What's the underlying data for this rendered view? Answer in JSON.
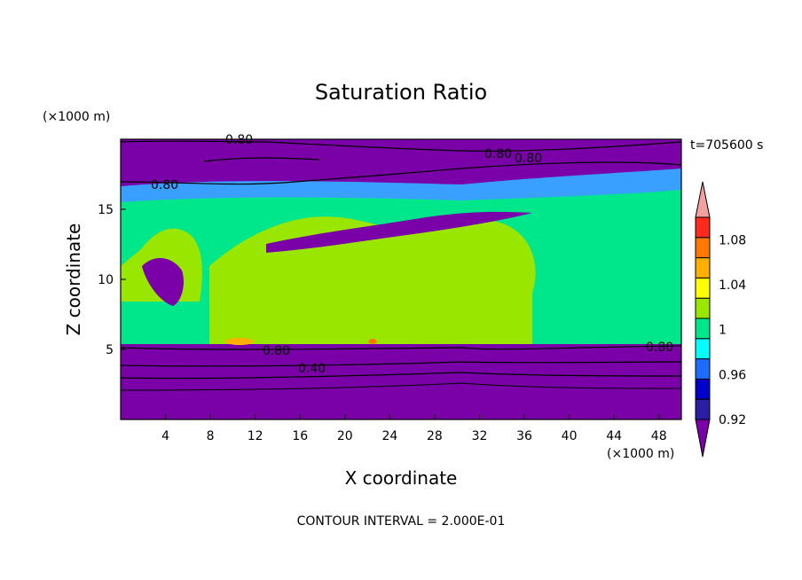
{
  "chart_data": {
    "type": "heatmap",
    "title": "Saturation Ratio",
    "xlabel": "X coordinate",
    "ylabel": "Z coordinate",
    "x_unit": "(×1000 m)",
    "y_unit": "(×1000 m)",
    "time_label": "t=705600 s",
    "footer": "CONTOUR INTERVAL = 2.000E-01",
    "xlim": [
      0,
      50
    ],
    "ylim": [
      0,
      20
    ],
    "x_ticks": [
      "4",
      "8",
      "12",
      "16",
      "20",
      "24",
      "28",
      "32",
      "36",
      "40",
      "44",
      "48"
    ],
    "y_ticks": [
      "5",
      "10",
      "15"
    ],
    "colorbar": {
      "labels": [
        "1.08",
        "1.04",
        "1",
        "0.96",
        "0.92"
      ],
      "levels": [
        0.92,
        0.94,
        0.96,
        0.98,
        1.0,
        1.02,
        1.04,
        1.06,
        1.08,
        1.1
      ],
      "colors": [
        "#7a00a8",
        "#2a1fa3",
        "#0000c8",
        "#1e6cff",
        "#00ffff",
        "#00e68a",
        "#99e600",
        "#ffff00",
        "#ffb000",
        "#ff7800",
        "#ff2a1e",
        "#f2a0a0"
      ]
    },
    "contour_labels": [
      "0.80",
      "0.80",
      "0.80",
      "0.80",
      "0.80",
      "0.80",
      "0.40"
    ],
    "layers": [
      {
        "z": [
          0,
          5
        ],
        "value": "<0.92"
      },
      {
        "z": [
          5,
          15
        ],
        "value": "0.98–1.02"
      },
      {
        "z": [
          15,
          17.5
        ],
        "value": "0.80–0.96"
      },
      {
        "z": [
          17.5,
          20
        ],
        "value": "<0.92"
      }
    ]
  }
}
